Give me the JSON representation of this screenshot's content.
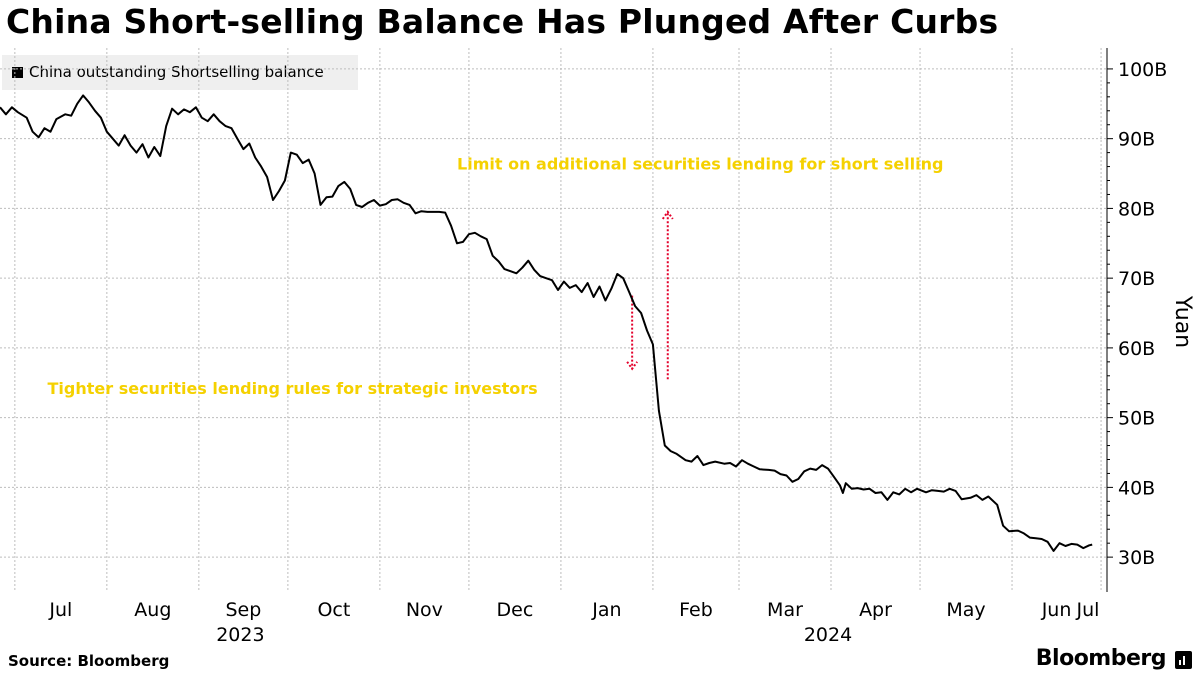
{
  "title": "China Short-selling Balance Has Plunged After Curbs",
  "legend_label": "China outstanding Shortselling balance",
  "source": "Source: Bloomberg",
  "brand": "Bloomberg",
  "colors": {
    "line": "#000000",
    "annotation_text": "#f5d100",
    "annotation_arrow": "#e4002b",
    "grid": "#bdbdbd"
  },
  "chart_data": {
    "type": "line",
    "title": "China Short-selling Balance Has Plunged After Curbs",
    "ylabel": "Yuan",
    "ylim": [
      25,
      103
    ],
    "y_ticks": [
      30,
      40,
      50,
      60,
      70,
      80,
      90,
      100
    ],
    "y_tick_labels": [
      "30B",
      "40B",
      "50B",
      "60B",
      "70B",
      "80B",
      "90B",
      "100B"
    ],
    "x_range": [
      "2023-06-26",
      "2024-07-03"
    ],
    "x_ticks": [
      {
        "date": "2023-07-01",
        "label": "Jul"
      },
      {
        "date": "2023-08-01",
        "label": "Aug"
      },
      {
        "date": "2023-09-01",
        "label": "Sep"
      },
      {
        "date": "2023-10-01",
        "label": "Oct"
      },
      {
        "date": "2023-11-01",
        "label": "Nov"
      },
      {
        "date": "2023-12-01",
        "label": "Dec"
      },
      {
        "date": "2024-01-01",
        "label": "Jan"
      },
      {
        "date": "2024-02-01",
        "label": "Feb"
      },
      {
        "date": "2024-03-01",
        "label": "Mar"
      },
      {
        "date": "2024-04-01",
        "label": "Apr"
      },
      {
        "date": "2024-05-01",
        "label": "May"
      },
      {
        "date": "2024-06-01",
        "label": "Jun"
      },
      {
        "date": "2024-07-01",
        "label": "Jul"
      }
    ],
    "year_labels": [
      {
        "date": "2023-09-15",
        "label": "2023"
      },
      {
        "date": "2024-03-31",
        "label": "2024"
      }
    ],
    "grid": true,
    "legend_position": "top-left",
    "series": [
      {
        "name": "China outstanding Shortselling balance",
        "points": [
          [
            "2023-06-26",
            94.5
          ],
          [
            "2023-06-28",
            93.5
          ],
          [
            "2023-06-30",
            94.5
          ],
          [
            "2023-07-02",
            93.8
          ],
          [
            "2023-07-05",
            93.0
          ],
          [
            "2023-07-07",
            91.0
          ],
          [
            "2023-07-09",
            90.2
          ],
          [
            "2023-07-11",
            91.5
          ],
          [
            "2023-07-13",
            91.0
          ],
          [
            "2023-07-15",
            92.8
          ],
          [
            "2023-07-18",
            93.5
          ],
          [
            "2023-07-20",
            93.3
          ],
          [
            "2023-07-22",
            95.0
          ],
          [
            "2023-07-24",
            96.2
          ],
          [
            "2023-07-26",
            95.2
          ],
          [
            "2023-07-28",
            94.0
          ],
          [
            "2023-07-30",
            93.0
          ],
          [
            "2023-08-01",
            91.0
          ],
          [
            "2023-08-03",
            90.0
          ],
          [
            "2023-08-05",
            89.0
          ],
          [
            "2023-08-07",
            90.5
          ],
          [
            "2023-08-09",
            89.0
          ],
          [
            "2023-08-11",
            88.0
          ],
          [
            "2023-08-13",
            89.2
          ],
          [
            "2023-08-15",
            87.3
          ],
          [
            "2023-08-17",
            88.8
          ],
          [
            "2023-08-19",
            87.5
          ],
          [
            "2023-08-21",
            91.8
          ],
          [
            "2023-08-23",
            94.3
          ],
          [
            "2023-08-25",
            93.5
          ],
          [
            "2023-08-27",
            94.2
          ],
          [
            "2023-08-29",
            93.8
          ],
          [
            "2023-08-31",
            94.5
          ],
          [
            "2023-09-02",
            93.0
          ],
          [
            "2023-09-04",
            92.5
          ],
          [
            "2023-09-06",
            93.5
          ],
          [
            "2023-09-08",
            92.5
          ],
          [
            "2023-09-10",
            91.8
          ],
          [
            "2023-09-12",
            91.5
          ],
          [
            "2023-09-14",
            90.0
          ],
          [
            "2023-09-16",
            88.5
          ],
          [
            "2023-09-18",
            89.3
          ],
          [
            "2023-09-20",
            87.3
          ],
          [
            "2023-09-22",
            86.0
          ],
          [
            "2023-09-24",
            84.5
          ],
          [
            "2023-09-26",
            81.2
          ],
          [
            "2023-09-28",
            82.5
          ],
          [
            "2023-09-30",
            84.0
          ],
          [
            "2023-10-02",
            88.0
          ],
          [
            "2023-10-04",
            87.7
          ],
          [
            "2023-10-06",
            86.5
          ],
          [
            "2023-10-08",
            87.0
          ],
          [
            "2023-10-10",
            85.0
          ],
          [
            "2023-10-12",
            80.5
          ],
          [
            "2023-10-14",
            81.6
          ],
          [
            "2023-10-16",
            81.7
          ],
          [
            "2023-10-18",
            83.2
          ],
          [
            "2023-10-20",
            83.8
          ],
          [
            "2023-10-22",
            82.8
          ],
          [
            "2023-10-24",
            80.5
          ],
          [
            "2023-10-26",
            80.2
          ],
          [
            "2023-10-28",
            80.8
          ],
          [
            "2023-10-30",
            81.2
          ],
          [
            "2023-11-01",
            80.4
          ],
          [
            "2023-11-03",
            80.6
          ],
          [
            "2023-11-05",
            81.2
          ],
          [
            "2023-11-07",
            81.3
          ],
          [
            "2023-11-09",
            80.8
          ],
          [
            "2023-11-11",
            80.5
          ],
          [
            "2023-11-13",
            79.3
          ],
          [
            "2023-11-15",
            79.6
          ],
          [
            "2023-11-17",
            79.5
          ],
          [
            "2023-11-19",
            79.5
          ],
          [
            "2023-11-21",
            79.5
          ],
          [
            "2023-11-23",
            79.4
          ],
          [
            "2023-11-25",
            77.5
          ],
          [
            "2023-11-27",
            75.0
          ],
          [
            "2023-11-29",
            75.2
          ],
          [
            "2023-12-01",
            76.3
          ],
          [
            "2023-12-03",
            76.5
          ],
          [
            "2023-12-05",
            76.0
          ],
          [
            "2023-12-07",
            75.6
          ],
          [
            "2023-12-09",
            73.2
          ],
          [
            "2023-12-11",
            72.4
          ],
          [
            "2023-12-13",
            71.3
          ],
          [
            "2023-12-15",
            71.0
          ],
          [
            "2023-12-17",
            70.7
          ],
          [
            "2023-12-19",
            71.5
          ],
          [
            "2023-12-21",
            72.5
          ],
          [
            "2023-12-23",
            71.2
          ],
          [
            "2023-12-25",
            70.3
          ],
          [
            "2023-12-27",
            70.0
          ],
          [
            "2023-12-29",
            69.7
          ],
          [
            "2023-12-31",
            68.3
          ],
          [
            "2024-01-02",
            69.5
          ],
          [
            "2024-01-04",
            68.6
          ],
          [
            "2024-01-06",
            69.0
          ],
          [
            "2024-01-08",
            68.0
          ],
          [
            "2024-01-10",
            69.3
          ],
          [
            "2024-01-12",
            67.3
          ],
          [
            "2024-01-14",
            68.8
          ],
          [
            "2024-01-16",
            66.8
          ],
          [
            "2024-01-18",
            68.5
          ],
          [
            "2024-01-20",
            70.6
          ],
          [
            "2024-01-22",
            70.0
          ],
          [
            "2024-01-24",
            68.0
          ],
          [
            "2024-01-26",
            66.0
          ],
          [
            "2024-01-28",
            65.0
          ],
          [
            "2024-01-30",
            62.5
          ],
          [
            "2024-02-01",
            60.5
          ],
          [
            "2024-02-03",
            51.0
          ],
          [
            "2024-02-05",
            46.0
          ],
          [
            "2024-02-07",
            45.2
          ],
          [
            "2024-02-09",
            44.8
          ],
          [
            "2024-02-12",
            43.9
          ],
          [
            "2024-02-14",
            43.7
          ],
          [
            "2024-02-16",
            44.5
          ],
          [
            "2024-02-18",
            43.2
          ],
          [
            "2024-02-20",
            43.5
          ],
          [
            "2024-02-22",
            43.7
          ],
          [
            "2024-02-25",
            43.4
          ],
          [
            "2024-02-27",
            43.5
          ],
          [
            "2024-02-29",
            43.0
          ],
          [
            "2024-03-02",
            43.9
          ],
          [
            "2024-03-04",
            43.4
          ],
          [
            "2024-03-06",
            43.0
          ],
          [
            "2024-03-08",
            42.6
          ],
          [
            "2024-03-11",
            42.5
          ],
          [
            "2024-03-13",
            42.4
          ],
          [
            "2024-03-15",
            41.9
          ],
          [
            "2024-03-17",
            41.7
          ],
          [
            "2024-03-19",
            40.8
          ],
          [
            "2024-03-21",
            41.2
          ],
          [
            "2024-03-23",
            42.3
          ],
          [
            "2024-03-25",
            42.7
          ],
          [
            "2024-03-27",
            42.5
          ],
          [
            "2024-03-29",
            43.2
          ],
          [
            "2024-03-31",
            42.7
          ],
          [
            "2024-04-02",
            41.5
          ],
          [
            "2024-04-04",
            40.3
          ],
          [
            "2024-04-05",
            39.2
          ],
          [
            "2024-04-06",
            40.6
          ],
          [
            "2024-04-08",
            39.8
          ],
          [
            "2024-04-10",
            39.9
          ],
          [
            "2024-04-12",
            39.7
          ],
          [
            "2024-04-14",
            39.8
          ],
          [
            "2024-04-16",
            39.2
          ],
          [
            "2024-04-18",
            39.3
          ],
          [
            "2024-04-20",
            38.2
          ],
          [
            "2024-04-22",
            39.3
          ],
          [
            "2024-04-24",
            39.0
          ],
          [
            "2024-04-26",
            39.8
          ],
          [
            "2024-04-28",
            39.3
          ],
          [
            "2024-04-30",
            39.8
          ],
          [
            "2024-05-03",
            39.3
          ],
          [
            "2024-05-05",
            39.6
          ],
          [
            "2024-05-07",
            39.5
          ],
          [
            "2024-05-09",
            39.4
          ],
          [
            "2024-05-11",
            39.8
          ],
          [
            "2024-05-13",
            39.5
          ],
          [
            "2024-05-15",
            38.3
          ],
          [
            "2024-05-18",
            38.5
          ],
          [
            "2024-05-20",
            38.9
          ],
          [
            "2024-05-22",
            38.2
          ],
          [
            "2024-05-24",
            38.7
          ],
          [
            "2024-05-27",
            37.5
          ],
          [
            "2024-05-29",
            34.5
          ],
          [
            "2024-05-31",
            33.7
          ],
          [
            "2024-06-03",
            33.8
          ],
          [
            "2024-06-05",
            33.4
          ],
          [
            "2024-06-07",
            32.8
          ],
          [
            "2024-06-09",
            32.7
          ],
          [
            "2024-06-11",
            32.6
          ],
          [
            "2024-06-13",
            32.2
          ],
          [
            "2024-06-15",
            30.9
          ],
          [
            "2024-06-17",
            32.0
          ],
          [
            "2024-06-19",
            31.6
          ],
          [
            "2024-06-21",
            31.9
          ],
          [
            "2024-06-23",
            31.8
          ],
          [
            "2024-06-25",
            31.3
          ],
          [
            "2024-06-27",
            31.7
          ],
          [
            "2024-06-28",
            31.8
          ]
        ]
      }
    ],
    "annotations": [
      {
        "text": "Limit on additional securities lending for short selling",
        "arrow_date": "2024-02-06",
        "arrow_from": 55.5,
        "arrow_to": 79.5,
        "text_anchor_date": "2023-11-27",
        "text_y": 85.6
      },
      {
        "text": "Tighter securities lending rules for strategic investors",
        "arrow_date": "2024-01-25",
        "arrow_from": 67.5,
        "arrow_to": 57.0,
        "text_anchor_date": "2023-07-12",
        "text_y": 53.4
      }
    ]
  }
}
